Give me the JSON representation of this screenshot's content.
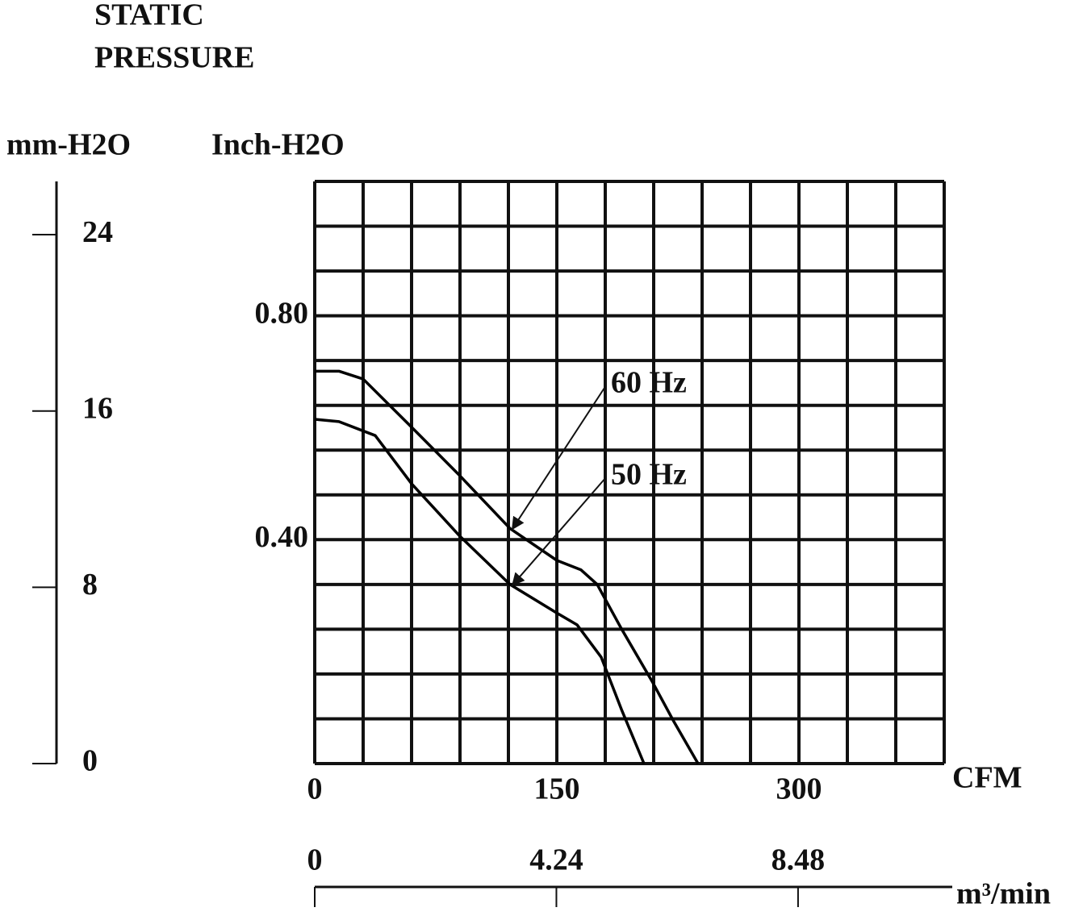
{
  "chart_data": {
    "type": "line",
    "title_lines": [
      "STATIC",
      "PRESSURE"
    ],
    "y_label": "Inch-H2O",
    "y2_label": "mm-H2O",
    "x_label": "CFM",
    "x2_label": "m³/min",
    "xlim": [
      0,
      390
    ],
    "xticks": [
      0,
      150,
      300
    ],
    "ylim": [
      0,
      1.04
    ],
    "yticks": [
      {
        "value": 0.4,
        "label": "0.40"
      },
      {
        "value": 0.8,
        "label": "0.80"
      }
    ],
    "y2lim": [
      0,
      26.416
    ],
    "y2ticks": [
      0,
      8,
      16,
      24
    ],
    "x2lim": [
      0,
      11.044
    ],
    "x2ticks": [
      0,
      4.24,
      8.48
    ],
    "x_gridlines": [
      0,
      30,
      60,
      90,
      120,
      150,
      180,
      210,
      240,
      270,
      300,
      330,
      360,
      390
    ],
    "y_gridlines": [
      0,
      0.08,
      0.16,
      0.24,
      0.32,
      0.4,
      0.48,
      0.56,
      0.64,
      0.72,
      0.8,
      0.88,
      0.96,
      1.04
    ],
    "grid": true,
    "series": [
      {
        "name": "60 Hz",
        "color": "#000000",
        "x": [
          0,
          15,
          30,
          60,
          90,
          121,
          150,
          165,
          175,
          190,
          209,
          222.5,
          237.5
        ],
        "values": [
          0.701,
          0.701,
          0.687,
          0.601,
          0.514,
          0.42,
          0.363,
          0.346,
          0.32,
          0.241,
          0.147,
          0.075,
          0
        ]
      },
      {
        "name": "50 Hz",
        "color": "#000000",
        "x": [
          0,
          15,
          37.5,
          60,
          90,
          121,
          150,
          162.5,
          177.5,
          190,
          204
        ],
        "values": [
          0.615,
          0.611,
          0.586,
          0.5,
          0.406,
          0.32,
          0.269,
          0.248,
          0.19,
          0.097,
          0
        ]
      }
    ]
  }
}
